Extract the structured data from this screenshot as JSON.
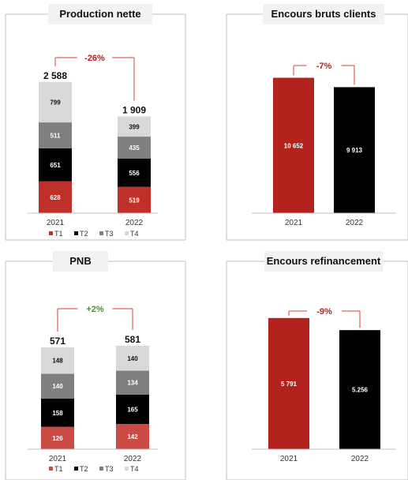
{
  "colors": {
    "T1_stack": "#c0302a",
    "T1_pnb": "#cc4a44",
    "T2": "#000000",
    "T3": "#7f7f7f",
    "T4": "#d9d9d9",
    "red_bar": "#b3221c",
    "black_bar": "#000000",
    "delta_red": "#b3221c",
    "delta_green": "#4e8a3a",
    "connector": "#d9423a",
    "frame": "#bfbfbf"
  },
  "chart_data": [
    {
      "type": "bar",
      "stacked": true,
      "title": "Production nette",
      "categories": [
        "2021",
        "2022"
      ],
      "series": [
        {
          "name": "T1",
          "values": [
            628,
            519
          ]
        },
        {
          "name": "T2",
          "values": [
            651,
            556
          ]
        },
        {
          "name": "T3",
          "values": [
            511,
            435
          ]
        },
        {
          "name": "T4",
          "values": [
            799,
            399
          ]
        }
      ],
      "value_labels": [
        [
          "628",
          "651",
          "511",
          "799"
        ],
        [
          "519",
          "556",
          "435",
          "399"
        ]
      ],
      "totals": [
        "2 588",
        "1 909"
      ],
      "total_values": [
        2588,
        1909
      ],
      "change": "-26%",
      "change_color": "delta_red",
      "legend": "bottom"
    },
    {
      "type": "bar",
      "title": "Encours bruts clients",
      "categories": [
        "2021",
        "2022"
      ],
      "values": [
        10652,
        9913
      ],
      "value_labels": [
        "10 652",
        "9 913"
      ],
      "change": "-7%",
      "change_color": "delta_red"
    },
    {
      "type": "bar",
      "stacked": true,
      "title": "PNB",
      "categories": [
        "2021",
        "2022"
      ],
      "series": [
        {
          "name": "T1",
          "values": [
            126,
            142
          ]
        },
        {
          "name": "T2",
          "values": [
            158,
            165
          ]
        },
        {
          "name": "T3",
          "values": [
            140,
            134
          ]
        },
        {
          "name": "T4",
          "values": [
            148,
            140
          ]
        }
      ],
      "value_labels": [
        [
          "126",
          "158",
          "140",
          "148"
        ],
        [
          "142",
          "165",
          "134",
          "140"
        ]
      ],
      "totals": [
        "571",
        "581"
      ],
      "total_values": [
        571,
        581
      ],
      "change": "+2%",
      "change_color": "delta_green",
      "legend": "bottom"
    },
    {
      "type": "bar",
      "title": "Encours refinancement",
      "categories": [
        "2021",
        "2022"
      ],
      "values": [
        5791,
        5256
      ],
      "value_labels": [
        "5 791",
        "5.256"
      ],
      "change": "-9%",
      "change_color": "delta_red"
    }
  ]
}
